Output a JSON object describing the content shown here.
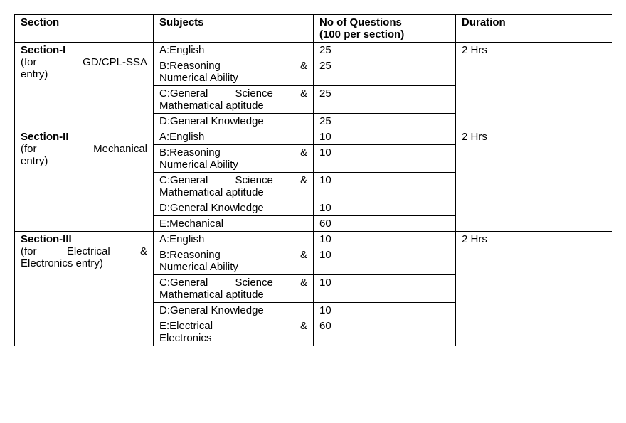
{
  "headers": {
    "section": "Section",
    "subjects": "Subjects",
    "questions_line1": "No of Questions",
    "questions_line2": "(100 per section)",
    "duration": "Duration"
  },
  "sections": [
    {
      "title": "Section-I",
      "sub_line1": "(for GD/CPL-SSA",
      "sub_line2": "entry)",
      "duration": "2 Hrs",
      "rows": [
        {
          "subject_l1": "A:English",
          "subject_l2": "",
          "questions": "25"
        },
        {
          "subject_l1": "B:Reasoning &",
          "subject_l2": "Numerical Ability",
          "questions": "25"
        },
        {
          "subject_l1": "C:General Science &",
          "subject_l2": "Mathematical aptitude",
          "questions": "25"
        },
        {
          "subject_l1": "D:General Knowledge",
          "subject_l2": "",
          "questions": "25"
        }
      ]
    },
    {
      "title": "Section-II",
      "sub_line1": "(for Mechanical",
      "sub_line2": "entry)",
      "duration": "2 Hrs",
      "rows": [
        {
          "subject_l1": "A:English",
          "subject_l2": "",
          "questions": "10"
        },
        {
          "subject_l1": "B:Reasoning &",
          "subject_l2": "Numerical Ability",
          "questions": "10"
        },
        {
          "subject_l1": "C:General Science &",
          "subject_l2": "Mathematical aptitude",
          "questions": "10"
        },
        {
          "subject_l1": "D:General Knowledge",
          "subject_l2": "",
          "questions": "10"
        },
        {
          "subject_l1": "E:Mechanical",
          "subject_l2": "",
          "questions": "60"
        }
      ]
    },
    {
      "title": "Section-III",
      "sub_line1": "(for Electrical &",
      "sub_line2": "Electronics entry)",
      "duration": "2 Hrs",
      "rows": [
        {
          "subject_l1": "A:English",
          "subject_l2": "",
          "questions": "10"
        },
        {
          "subject_l1": "B:Reasoning &",
          "subject_l2": "Numerical Ability",
          "questions": "10"
        },
        {
          "subject_l1": "C:General Science &",
          "subject_l2": "Mathematical aptitude",
          "questions": "10"
        },
        {
          "subject_l1": "D:General Knowledge",
          "subject_l2": "",
          "questions": "10"
        },
        {
          "subject_l1": "E:Electrical &",
          "subject_l2": "Electronics",
          "questions": "60"
        }
      ]
    }
  ]
}
